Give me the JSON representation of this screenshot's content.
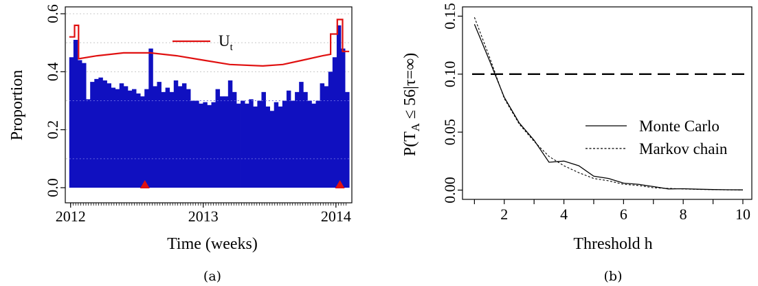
{
  "chart_data": [
    {
      "type": "bar",
      "panel": "a",
      "caption": "(a)",
      "xlabel": "Time (weeks)",
      "ylabel": "Proportion",
      "ylim": [
        0,
        0.6
      ],
      "xlim": [
        2011.96,
        2014.12
      ],
      "yticks": [
        0.0,
        0.2,
        0.4,
        0.6
      ],
      "ytick_labels": [
        "0.0",
        "0.2",
        "0.4",
        "0.6"
      ],
      "xticks": [
        2012,
        2013,
        2014
      ],
      "xtick_labels": [
        "2012",
        "2013",
        "2014"
      ],
      "grid": "horizontal dotted",
      "bar_color": "#1010c0",
      "bar_x_start": 2011.99,
      "bar_x_end": 2014.1,
      "values": [
        0.45,
        0.51,
        0.44,
        0.43,
        0.305,
        0.365,
        0.375,
        0.38,
        0.37,
        0.36,
        0.345,
        0.34,
        0.36,
        0.35,
        0.335,
        0.34,
        0.325,
        0.315,
        0.34,
        0.48,
        0.35,
        0.365,
        0.33,
        0.345,
        0.33,
        0.37,
        0.35,
        0.36,
        0.34,
        0.3,
        0.3,
        0.29,
        0.295,
        0.285,
        0.295,
        0.34,
        0.315,
        0.315,
        0.37,
        0.33,
        0.29,
        0.3,
        0.29,
        0.305,
        0.28,
        0.3,
        0.33,
        0.28,
        0.265,
        0.295,
        0.28,
        0.3,
        0.335,
        0.3,
        0.33,
        0.365,
        0.33,
        0.3,
        0.29,
        0.3,
        0.36,
        0.35,
        0.4,
        0.45,
        0.56,
        0.48,
        0.33
      ],
      "threshold_series": {
        "name": "U",
        "subscript": "t",
        "color": "#e01010",
        "x": [
          2011.99,
          2012.03,
          2012.03,
          2012.06,
          2012.06,
          2012.2,
          2012.4,
          2012.6,
          2012.8,
          2013.0,
          2013.2,
          2013.45,
          2013.6,
          2013.75,
          2013.9,
          2013.96,
          2013.96,
          2014.01,
          2014.01,
          2014.05,
          2014.05,
          2014.1
        ],
        "y": [
          0.52,
          0.52,
          0.56,
          0.56,
          0.445,
          0.455,
          0.465,
          0.465,
          0.455,
          0.44,
          0.425,
          0.42,
          0.425,
          0.44,
          0.455,
          0.46,
          0.53,
          0.53,
          0.58,
          0.58,
          0.47,
          0.47
        ]
      },
      "markers": [
        {
          "x": 2012.56,
          "shape": "triangle",
          "color": "#e01010"
        },
        {
          "x": 2014.03,
          "shape": "triangle",
          "color": "#e01010"
        }
      ]
    },
    {
      "type": "line",
      "panel": "b",
      "caption": "(b)",
      "xlabel": "Threshold h",
      "ylabel": "P(T_A ≤ 56|τ=∞)",
      "ylabel_parts": {
        "prefix": "P(T",
        "sub": "A",
        "suffix": " ≤ 56|τ=∞)"
      },
      "xlim": [
        0.6,
        10.3
      ],
      "ylim": [
        -0.008,
        0.158
      ],
      "xticks": [
        2,
        4,
        6,
        8,
        10
      ],
      "xtick_labels": [
        "2",
        "4",
        "6",
        "8",
        "10"
      ],
      "yticks": [
        0.0,
        0.05,
        0.1,
        0.15
      ],
      "ytick_labels": [
        "0.00",
        "0.05",
        "0.10",
        "0.15"
      ],
      "hline": 0.1,
      "legend_position": "right",
      "series": [
        {
          "name": "Monte Carlo",
          "style": "solid",
          "x": [
            1.0,
            1.5,
            2.0,
            2.5,
            3.0,
            3.5,
            4.0,
            4.5,
            5.0,
            5.5,
            6.0,
            6.5,
            7.0,
            7.5,
            8.0,
            8.5,
            9.0,
            9.5,
            10.0
          ],
          "values": [
            0.143,
            0.112,
            0.08,
            0.058,
            0.043,
            0.024,
            0.025,
            0.021,
            0.012,
            0.01,
            0.006,
            0.005,
            0.003,
            0.001,
            0.0012,
            0.0008,
            0.0005,
            0.0003,
            0.0002
          ]
        },
        {
          "name": "Markov chain",
          "style": "dashed",
          "x": [
            1.0,
            1.5,
            2.0,
            2.5,
            3.0,
            3.5,
            4.0,
            4.5,
            5.0,
            5.5,
            6.0,
            6.5,
            7.0,
            7.5,
            8.0,
            8.5,
            9.0,
            9.5,
            10.0
          ],
          "values": [
            0.149,
            0.115,
            0.079,
            0.057,
            0.042,
            0.029,
            0.021,
            0.015,
            0.01,
            0.008,
            0.005,
            0.004,
            0.002,
            0.0015,
            0.001,
            0.0006,
            0.0004,
            0.0002,
            0.0001
          ]
        }
      ]
    }
  ]
}
